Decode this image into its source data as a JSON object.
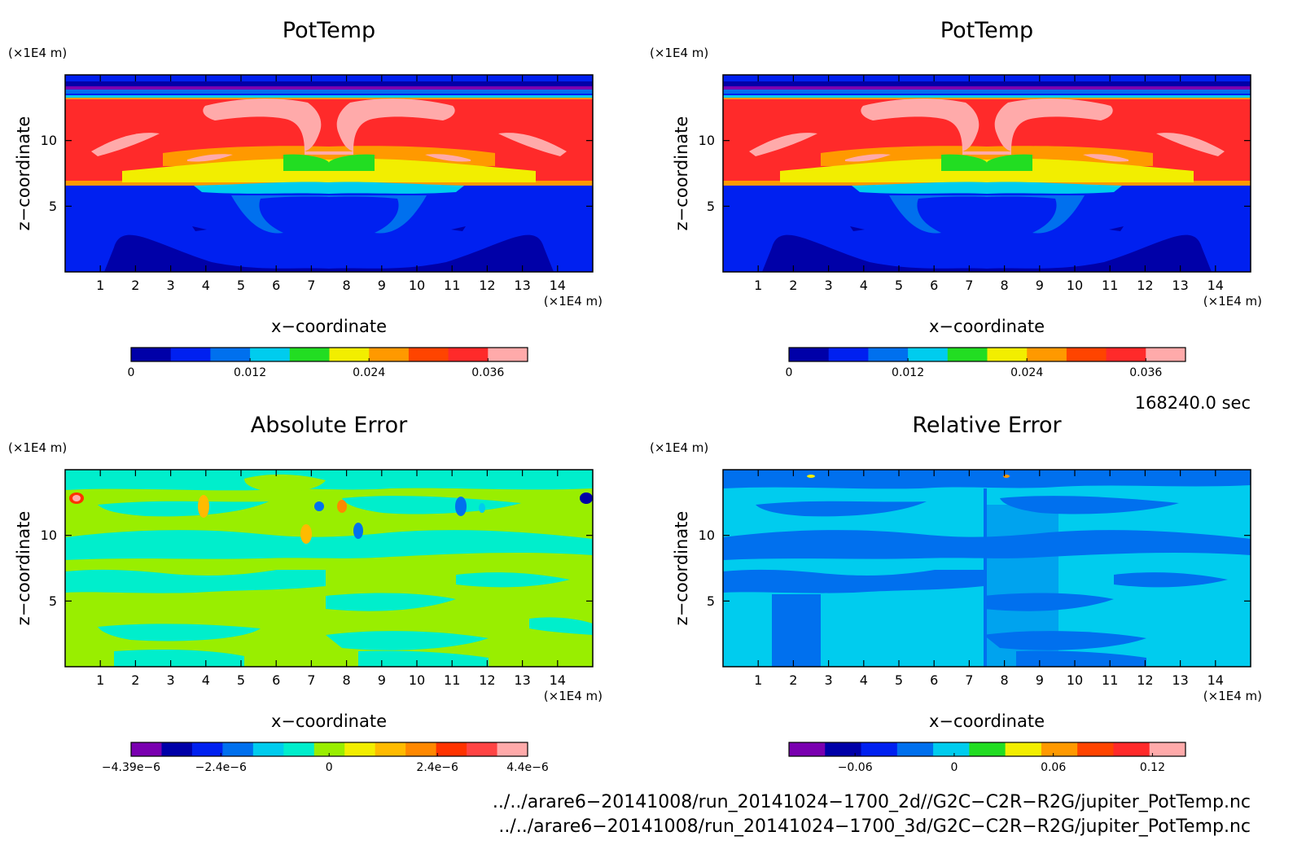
{
  "panels": [
    {
      "title": "PotTemp",
      "xlabel": "x−coordinate",
      "ylabel": "z−coordinate",
      "x_unit": "(×1E4 m)",
      "y_unit": "(×1E4 m)",
      "field": "pottemp",
      "colorbar": {
        "colors": [
          "#0000a8",
          "#0020f0",
          "#0070ee",
          "#00ccee",
          "#22dd22",
          "#f2ee00",
          "#ff9900",
          "#ff4400",
          "#ff2a2a",
          "#ffaaaa"
        ],
        "labels": [
          "0",
          "0.012",
          "0.024",
          "0.036"
        ]
      }
    },
    {
      "title": "PotTemp",
      "xlabel": "x−coordinate",
      "ylabel": "z−coordinate",
      "x_unit": "(×1E4 m)",
      "y_unit": "(×1E4 m)",
      "field": "pottemp",
      "colorbar": {
        "colors": [
          "#0000a8",
          "#0020f0",
          "#0070ee",
          "#00ccee",
          "#22dd22",
          "#f2ee00",
          "#ff9900",
          "#ff4400",
          "#ff2a2a",
          "#ffaaaa"
        ],
        "labels": [
          "0",
          "0.012",
          "0.024",
          "0.036"
        ]
      }
    },
    {
      "title": "Absolute Error",
      "xlabel": "x−coordinate",
      "ylabel": "z−coordinate",
      "x_unit": "(×1E4 m)",
      "y_unit": "(×1E4 m)",
      "field": "abserr",
      "colorbar": {
        "colors": [
          "#7a00b0",
          "#0000a8",
          "#0020f0",
          "#0070ee",
          "#00ccee",
          "#00eecc",
          "#99ee00",
          "#f2ee00",
          "#ffbb00",
          "#ff8800",
          "#ff3300",
          "#ff4444",
          "#ffaaaa"
        ],
        "labels": [
          "−4.39e−6",
          "−2.4e−6",
          "0",
          "2.4e−6",
          "4.4e−6"
        ]
      }
    },
    {
      "title": "Relative Error",
      "xlabel": "x−coordinate",
      "ylabel": "z−coordinate",
      "x_unit": "(×1E4 m)",
      "y_unit": "(×1E4 m)",
      "field": "relerr",
      "colorbar": {
        "colors": [
          "#7a00b0",
          "#0000a8",
          "#0020f0",
          "#0070ee",
          "#00ccee",
          "#22dd22",
          "#f2ee00",
          "#ff9900",
          "#ff4400",
          "#ff2a2a",
          "#ffaaaa"
        ],
        "labels": [
          "−0.06",
          "0",
          "0.06",
          "0.12"
        ]
      }
    }
  ],
  "timestamp": "168240.0 sec",
  "files": [
    "../../arare6−20141008/run_20141024−1700_2d//G2C−C2R−R2G/jupiter_PotTemp.nc",
    "../../arare6−20141008/run_20141024−1700_3d/G2C−C2R−R2G/jupiter_PotTemp.nc"
  ],
  "chart_data": [
    {
      "type": "heatmap",
      "title": "PotTemp",
      "xlabel": "x−coordinate",
      "ylabel": "z−coordinate",
      "x_ticks": [
        1,
        2,
        3,
        4,
        5,
        6,
        7,
        8,
        9,
        10,
        11,
        12,
        13,
        14
      ],
      "y_ticks": [
        5,
        10
      ],
      "xlim": [
        0,
        15
      ],
      "ylim": [
        0,
        15
      ],
      "colorbar_labels": [
        "0",
        "0.012",
        "0.024",
        "0.036"
      ],
      "colorbar_range": [
        0,
        0.04
      ],
      "colorbar_levels": 10
    },
    {
      "type": "heatmap",
      "title": "PotTemp",
      "xlabel": "x−coordinate",
      "ylabel": "z−coordinate",
      "x_ticks": [
        1,
        2,
        3,
        4,
        5,
        6,
        7,
        8,
        9,
        10,
        11,
        12,
        13,
        14
      ],
      "y_ticks": [
        5,
        10
      ],
      "xlim": [
        0,
        15
      ],
      "ylim": [
        0,
        15
      ],
      "colorbar_labels": [
        "0",
        "0.012",
        "0.024",
        "0.036"
      ],
      "colorbar_range": [
        0,
        0.04
      ],
      "colorbar_levels": 10
    },
    {
      "type": "heatmap",
      "title": "Absolute Error",
      "xlabel": "x−coordinate",
      "ylabel": "z−coordinate",
      "x_ticks": [
        1,
        2,
        3,
        4,
        5,
        6,
        7,
        8,
        9,
        10,
        11,
        12,
        13,
        14
      ],
      "y_ticks": [
        5,
        10
      ],
      "xlim": [
        0,
        15
      ],
      "ylim": [
        0,
        15
      ],
      "colorbar_labels": [
        "−4.39e−6",
        "−2.4e−6",
        "0",
        "2.4e−6",
        "4.4e−6"
      ],
      "colorbar_range": [
        -4.39e-06,
        4.4e-06
      ],
      "colorbar_levels": 13
    },
    {
      "type": "heatmap",
      "title": "Relative Error",
      "xlabel": "x−coordinate",
      "ylabel": "z−coordinate",
      "x_ticks": [
        1,
        2,
        3,
        4,
        5,
        6,
        7,
        8,
        9,
        10,
        11,
        12,
        13,
        14
      ],
      "y_ticks": [
        5,
        10
      ],
      "xlim": [
        0,
        15
      ],
      "ylim": [
        0,
        15
      ],
      "colorbar_labels": [
        "−0.06",
        "0",
        "0.06",
        "0.12"
      ],
      "colorbar_range": [
        -0.1,
        0.14
      ],
      "colorbar_levels": 11
    }
  ]
}
